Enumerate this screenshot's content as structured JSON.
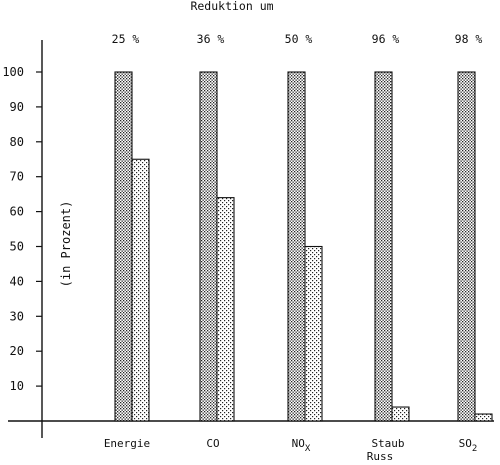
{
  "chart_data": {
    "type": "bar",
    "title": "Reduktion um",
    "ylabel": "(in Prozent)",
    "xlabel": "",
    "ylim": [
      0,
      100
    ],
    "yticks": [
      10,
      20,
      30,
      40,
      50,
      60,
      70,
      80,
      90,
      100
    ],
    "categories": [
      "Energie",
      "CO",
      "NOx",
      "Staub Russ",
      "SO2"
    ],
    "category_labels": [
      {
        "main": "Energie",
        "sub": "",
        "line2": ""
      },
      {
        "main": "CO",
        "sub": "",
        "line2": ""
      },
      {
        "main": "NO",
        "sub": "X",
        "line2": ""
      },
      {
        "main": "Staub",
        "sub": "",
        "line2": "Russ"
      },
      {
        "main": "SO",
        "sub": "2",
        "line2": ""
      }
    ],
    "reduction_labels": [
      "25 %",
      "36 %",
      "50 %",
      "96 %",
      "98 %"
    ],
    "series": [
      {
        "values": [
          100,
          100,
          100,
          100,
          100
        ],
        "pattern": "dense"
      },
      {
        "values": [
          75,
          64,
          50,
          4,
          2
        ],
        "pattern": "sparse"
      }
    ],
    "grid": false,
    "legend": "none"
  }
}
